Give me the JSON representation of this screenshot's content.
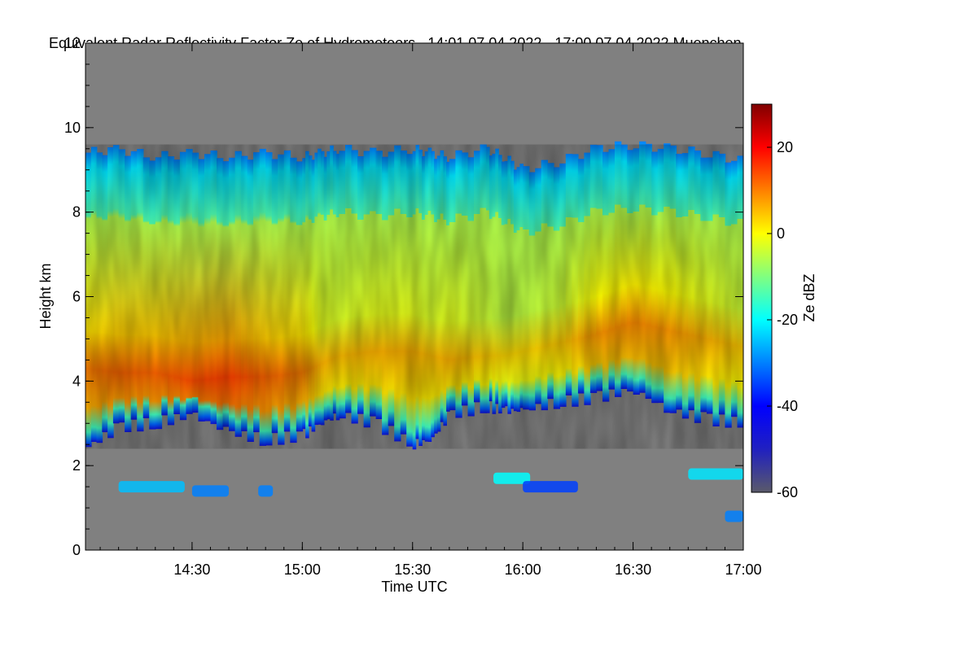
{
  "chart_data": {
    "type": "heatmap",
    "title": "Equivalent Radar Reflectivity Factor Ze of Hydrometeors",
    "time_range_text": "14:01 07.04.2022 - 17:00 07.04.2022",
    "location": "Muenchen",
    "xlabel": "Time UTC",
    "ylabel": "Height km",
    "xlim_minutes_utc": [
      841,
      1020
    ],
    "ylim_km": [
      0,
      12
    ],
    "x_ticks": [
      {
        "minute": 870,
        "label": "14:30"
      },
      {
        "minute": 900,
        "label": "15:00"
      },
      {
        "minute": 930,
        "label": "15:30"
      },
      {
        "minute": 960,
        "label": "16:00"
      },
      {
        "minute": 990,
        "label": "16:30"
      },
      {
        "minute": 1020,
        "label": "17:00"
      }
    ],
    "y_ticks": [
      {
        "value": 0,
        "label": "0"
      },
      {
        "value": 2,
        "label": "2"
      },
      {
        "value": 4,
        "label": "4"
      },
      {
        "value": 6,
        "label": "6"
      },
      {
        "value": 8,
        "label": "8"
      },
      {
        "value": 10,
        "label": "10"
      },
      {
        "value": 12,
        "label": "12"
      }
    ],
    "colorbar": {
      "label": "Ze dBZ",
      "range": [
        -60,
        30
      ],
      "ticks": [
        {
          "value": -60,
          "label": "-60"
        },
        {
          "value": -40,
          "label": "-40"
        },
        {
          "value": -20,
          "label": "-20"
        },
        {
          "value": 0,
          "label": "0"
        },
        {
          "value": 20,
          "label": "20"
        }
      ],
      "colormap": [
        "#5a5a6a",
        "#2020c0",
        "#0000ff",
        "#0080ff",
        "#00ffff",
        "#80ff80",
        "#ffff00",
        "#ff8000",
        "#ff0000",
        "#800000"
      ]
    },
    "background_color": "#808080",
    "cloud_echo": {
      "time_minutes": [
        841,
        850,
        860,
        870,
        880,
        890,
        900,
        905,
        910,
        920,
        930,
        935,
        940,
        950,
        955,
        960,
        970,
        980,
        990,
        1000,
        1010,
        1020
      ],
      "top_km": [
        9.4,
        9.5,
        9.3,
        9.4,
        9.3,
        9.4,
        9.3,
        9.4,
        9.5,
        9.4,
        9.5,
        9.4,
        9.3,
        9.5,
        9.3,
        9.0,
        9.2,
        9.5,
        9.6,
        9.5,
        9.4,
        9.2
      ],
      "base_km": [
        2.4,
        2.9,
        3.0,
        3.2,
        2.8,
        2.6,
        2.7,
        3.0,
        3.2,
        3.0,
        2.5,
        2.6,
        3.2,
        3.4,
        3.3,
        3.3,
        3.5,
        3.6,
        3.8,
        3.3,
        3.1,
        3.0
      ],
      "core_dbz": [
        10,
        12,
        12,
        14,
        15,
        12,
        10,
        6,
        5,
        6,
        6,
        5,
        6,
        4,
        3,
        3,
        4,
        8,
        9,
        8,
        6,
        4
      ],
      "core_height_km": [
        4.3,
        4.2,
        4.2,
        4.0,
        4.1,
        4.1,
        4.2,
        4.4,
        4.6,
        4.7,
        4.7,
        4.6,
        4.5,
        4.6,
        4.6,
        4.7,
        4.9,
        5.1,
        5.4,
        5.2,
        5.0,
        4.8
      ]
    },
    "low_echoes": [
      {
        "t_start": 850,
        "t_end": 868,
        "height_km": 1.5,
        "dbz": -25
      },
      {
        "t_start": 870,
        "t_end": 880,
        "height_km": 1.4,
        "dbz": -30
      },
      {
        "t_start": 888,
        "t_end": 892,
        "height_km": 1.4,
        "dbz": -30
      },
      {
        "t_start": 952,
        "t_end": 962,
        "height_km": 1.7,
        "dbz": -20
      },
      {
        "t_start": 960,
        "t_end": 975,
        "height_km": 1.5,
        "dbz": -35
      },
      {
        "t_start": 1005,
        "t_end": 1020,
        "height_km": 1.8,
        "dbz": -22
      },
      {
        "t_start": 1015,
        "t_end": 1020,
        "height_km": 0.8,
        "dbz": -30
      }
    ]
  }
}
